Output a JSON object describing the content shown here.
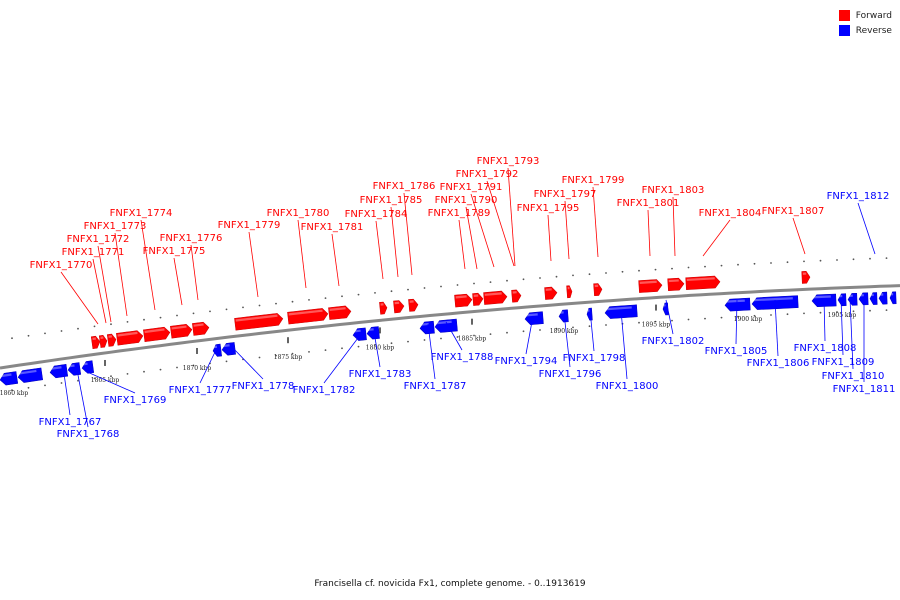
{
  "caption": "Francisella cf. novicida Fx1, complete genome. - 0..1913619",
  "legend": [
    {
      "label": "Forward",
      "color": "#ff0000"
    },
    {
      "label": "Reverse",
      "color": "#0000ff"
    }
  ],
  "colors": {
    "forward": "#ff0000",
    "reverse": "#0000ff",
    "backbone": "#888888"
  },
  "ticks": [
    "1860 kbp",
    "1865 kbp",
    "1870 kbp",
    "1875 kbp",
    "1880 kbp",
    "1885 kbp",
    "1890 kbp",
    "1895 kbp",
    "1900 kbp",
    "1905 kbp"
  ],
  "genes": [
    {
      "id": "FNFX1_1767",
      "strand": "reverse"
    },
    {
      "id": "FNFX1_1768",
      "strand": "reverse"
    },
    {
      "id": "FNFX1_1769",
      "strand": "reverse"
    },
    {
      "id": "FNFX1_1770",
      "strand": "forward"
    },
    {
      "id": "FNFX1_1771",
      "strand": "forward"
    },
    {
      "id": "FNFX1_1772",
      "strand": "forward"
    },
    {
      "id": "FNFX1_1773",
      "strand": "forward"
    },
    {
      "id": "FNFX1_1774",
      "strand": "forward"
    },
    {
      "id": "FNFX1_1775",
      "strand": "forward"
    },
    {
      "id": "FNFX1_1776",
      "strand": "forward"
    },
    {
      "id": "FNFX1_1777",
      "strand": "reverse"
    },
    {
      "id": "FNFX1_1778",
      "strand": "reverse"
    },
    {
      "id": "FNFX1_1779",
      "strand": "forward"
    },
    {
      "id": "FNFX1_1780",
      "strand": "forward"
    },
    {
      "id": "FNFX1_1781",
      "strand": "forward"
    },
    {
      "id": "FNFX1_1782",
      "strand": "reverse"
    },
    {
      "id": "FNFX1_1783",
      "strand": "reverse"
    },
    {
      "id": "FNFX1_1784",
      "strand": "forward"
    },
    {
      "id": "FNFX1_1785",
      "strand": "forward"
    },
    {
      "id": "FNFX1_1786",
      "strand": "forward"
    },
    {
      "id": "FNFX1_1787",
      "strand": "reverse"
    },
    {
      "id": "FNFX1_1788",
      "strand": "reverse"
    },
    {
      "id": "FNFX1_1789",
      "strand": "forward"
    },
    {
      "id": "FNFX1_1790",
      "strand": "forward"
    },
    {
      "id": "FNFX1_1791",
      "strand": "forward"
    },
    {
      "id": "FNFX1_1792",
      "strand": "forward"
    },
    {
      "id": "FNFX1_1793",
      "strand": "forward"
    },
    {
      "id": "FNFX1_1794",
      "strand": "reverse"
    },
    {
      "id": "FNFX1_1795",
      "strand": "forward"
    },
    {
      "id": "FNFX1_1796",
      "strand": "reverse"
    },
    {
      "id": "FNFX1_1797",
      "strand": "forward"
    },
    {
      "id": "FNFX1_1798",
      "strand": "reverse"
    },
    {
      "id": "FNFX1_1799",
      "strand": "forward"
    },
    {
      "id": "FNFX1_1800",
      "strand": "reverse"
    },
    {
      "id": "FNFX1_1801",
      "strand": "forward"
    },
    {
      "id": "FNFX1_1802",
      "strand": "reverse"
    },
    {
      "id": "FNFX1_1803",
      "strand": "forward"
    },
    {
      "id": "FNFX1_1804",
      "strand": "forward"
    },
    {
      "id": "FNFX1_1805",
      "strand": "reverse"
    },
    {
      "id": "FNFX1_1806",
      "strand": "reverse"
    },
    {
      "id": "FNFX1_1807",
      "strand": "forward"
    },
    {
      "id": "FNFX1_1808",
      "strand": "reverse"
    },
    {
      "id": "FNFX1_1809",
      "strand": "reverse"
    },
    {
      "id": "FNFX1_1810",
      "strand": "reverse"
    },
    {
      "id": "FNFX1_1811",
      "strand": "reverse"
    },
    {
      "id": "FNFX1_1812",
      "strand": "reverse"
    }
  ]
}
